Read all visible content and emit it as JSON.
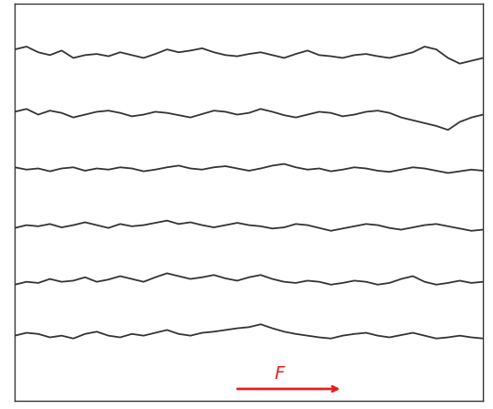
{
  "chart_data": {
    "type": "line",
    "x": [
      0,
      1,
      2,
      3,
      4,
      5,
      6,
      7,
      8,
      9,
      10,
      11,
      12,
      13,
      14,
      15,
      16,
      17,
      18,
      19,
      20,
      21,
      22,
      23,
      24,
      25,
      26,
      27,
      28,
      29,
      30,
      31,
      32,
      33,
      34,
      35,
      36,
      37,
      38,
      39,
      40
    ],
    "series": [
      {
        "color": "#333333",
        "values": [
          6.2,
          6.25,
          6.15,
          6.1,
          6.18,
          6.05,
          6.1,
          6.12,
          6.08,
          6.15,
          6.1,
          6.05,
          6.12,
          6.2,
          6.15,
          6.18,
          6.22,
          6.15,
          6.1,
          6.08,
          6.12,
          6.15,
          6.1,
          6.05,
          6.12,
          6.18,
          6.1,
          6.08,
          6.05,
          6.1,
          6.12,
          6.08,
          6.05,
          6.1,
          6.15,
          6.25,
          6.2,
          6.05,
          5.95,
          6.0,
          6.05
        ]
      },
      {
        "color": "#333333",
        "values": [
          5.1,
          5.15,
          5.05,
          5.12,
          5.08,
          5.0,
          5.05,
          5.1,
          5.12,
          5.08,
          5.02,
          5.05,
          5.1,
          5.08,
          5.04,
          5.0,
          5.06,
          5.12,
          5.1,
          5.05,
          5.08,
          5.15,
          5.1,
          5.04,
          5.0,
          5.05,
          5.1,
          5.08,
          5.02,
          5.05,
          5.1,
          5.12,
          5.08,
          5.0,
          4.95,
          4.9,
          4.85,
          4.78,
          4.92,
          5.0,
          5.05
        ]
      },
      {
        "color": "#333333",
        "values": [
          4.12,
          4.08,
          4.1,
          4.05,
          4.1,
          4.12,
          4.06,
          4.1,
          4.08,
          4.12,
          4.1,
          4.05,
          4.08,
          4.12,
          4.15,
          4.1,
          4.08,
          4.12,
          4.14,
          4.1,
          4.06,
          4.1,
          4.15,
          4.18,
          4.12,
          4.08,
          4.1,
          4.05,
          4.08,
          4.12,
          4.1,
          4.06,
          4.04,
          4.08,
          4.12,
          4.1,
          4.06,
          4.02,
          4.05,
          4.08,
          4.06
        ]
      },
      {
        "color": "#333333",
        "values": [
          3.05,
          3.1,
          3.08,
          3.12,
          3.06,
          3.1,
          3.15,
          3.1,
          3.05,
          3.12,
          3.08,
          3.1,
          3.14,
          3.18,
          3.12,
          3.15,
          3.1,
          3.06,
          3.1,
          3.14,
          3.1,
          3.08,
          3.04,
          3.06,
          3.12,
          3.1,
          3.05,
          3.0,
          3.04,
          3.08,
          3.12,
          3.1,
          3.05,
          3.02,
          3.06,
          3.1,
          3.12,
          3.08,
          3.04,
          3.0,
          3.02
        ]
      },
      {
        "color": "#333333",
        "values": [
          2.05,
          2.1,
          2.08,
          2.15,
          2.1,
          2.12,
          2.18,
          2.1,
          2.14,
          2.2,
          2.15,
          2.1,
          2.18,
          2.25,
          2.2,
          2.15,
          2.18,
          2.22,
          2.16,
          2.12,
          2.18,
          2.22,
          2.15,
          2.1,
          2.08,
          2.12,
          2.1,
          2.05,
          2.08,
          2.12,
          2.1,
          2.05,
          2.08,
          2.15,
          2.2,
          2.1,
          2.05,
          2.08,
          2.12,
          2.08,
          2.1
        ]
      },
      {
        "color": "#333333",
        "values": [
          1.15,
          1.2,
          1.18,
          1.12,
          1.15,
          1.1,
          1.18,
          1.22,
          1.15,
          1.12,
          1.18,
          1.15,
          1.2,
          1.25,
          1.18,
          1.15,
          1.2,
          1.22,
          1.25,
          1.28,
          1.3,
          1.35,
          1.28,
          1.22,
          1.18,
          1.15,
          1.12,
          1.1,
          1.15,
          1.18,
          1.2,
          1.15,
          1.12,
          1.16,
          1.2,
          1.15,
          1.1,
          1.12,
          1.15,
          1.12,
          1.1
        ]
      }
    ],
    "xlim": [
      0,
      40
    ],
    "ylim": [
      0,
      7
    ],
    "xticks": [],
    "yticks": [],
    "tick_labels": false,
    "annotations": [
      {
        "text": "F",
        "color": "#e02020"
      }
    ]
  }
}
